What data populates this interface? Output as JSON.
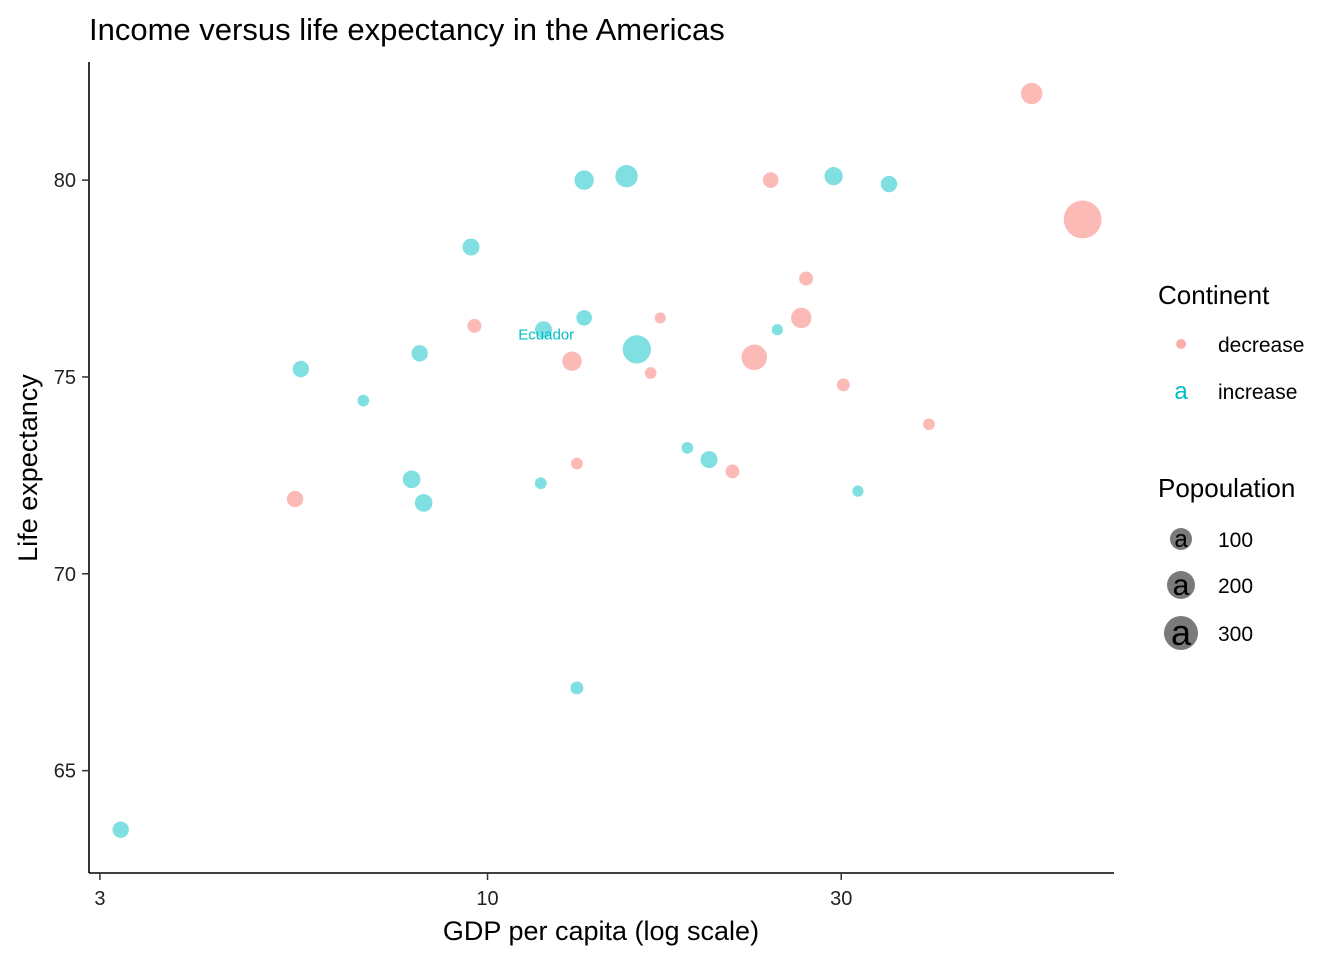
{
  "chart_data": {
    "type": "scatter",
    "title": "Income versus life expectancy in the Americas",
    "xlabel": "GDP per capita (log scale)",
    "ylabel": "Life expectancy",
    "x_scale": "log",
    "xlim": [
      2.9,
      70
    ],
    "ylim": [
      62.4,
      83.0
    ],
    "x_ticks": [
      3,
      10,
      30
    ],
    "x_tick_labels": [
      "3",
      "10",
      "30"
    ],
    "y_ticks": [
      65,
      70,
      75,
      80
    ],
    "y_tick_labels": [
      "65",
      "70",
      "75",
      "80"
    ],
    "grid": false,
    "colors": {
      "decrease": "#f8766d",
      "increase": "#00bfc4"
    },
    "legend": {
      "placement": "right",
      "color_title": "Continent",
      "color_entries": [
        {
          "label": "decrease",
          "key": "decrease"
        },
        {
          "label": "increase",
          "key": "increase"
        }
      ],
      "size_title": "Popoulation",
      "size_entries": [
        {
          "label": "100",
          "value": 100
        },
        {
          "label": "200",
          "value": 200
        },
        {
          "label": "300",
          "value": 300
        }
      ],
      "key_glyph": "a"
    },
    "annotations": [
      {
        "text": "Ecuador",
        "x": 12.0,
        "y": 76.1,
        "group": "increase"
      }
    ],
    "points": [
      {
        "x": 3.2,
        "y": 63.5,
        "size": 35,
        "group": "increase"
      },
      {
        "x": 5.6,
        "y": 75.2,
        "size": 35,
        "group": "increase"
      },
      {
        "x": 5.5,
        "y": 71.9,
        "size": 35,
        "group": "decrease"
      },
      {
        "x": 6.8,
        "y": 74.4,
        "size": 10,
        "group": "increase"
      },
      {
        "x": 8.1,
        "y": 75.6,
        "size": 35,
        "group": "increase"
      },
      {
        "x": 7.9,
        "y": 72.4,
        "size": 45,
        "group": "increase"
      },
      {
        "x": 8.2,
        "y": 71.8,
        "size": 45,
        "group": "increase"
      },
      {
        "x": 9.5,
        "y": 78.3,
        "size": 40,
        "group": "increase"
      },
      {
        "x": 9.6,
        "y": 76.3,
        "size": 20,
        "group": "decrease"
      },
      {
        "x": 11.8,
        "y": 72.3,
        "size": 10,
        "group": "increase"
      },
      {
        "x": 11.9,
        "y": 76.2,
        "size": 40,
        "group": "increase"
      },
      {
        "x": 13.0,
        "y": 75.4,
        "size": 60,
        "group": "decrease"
      },
      {
        "x": 13.2,
        "y": 72.8,
        "size": 10,
        "group": "decrease"
      },
      {
        "x": 13.2,
        "y": 67.1,
        "size": 15,
        "group": "increase"
      },
      {
        "x": 13.5,
        "y": 76.5,
        "size": 30,
        "group": "increase"
      },
      {
        "x": 13.5,
        "y": 80.0,
        "size": 60,
        "group": "increase"
      },
      {
        "x": 15.4,
        "y": 80.1,
        "size": 90,
        "group": "increase"
      },
      {
        "x": 15.9,
        "y": 75.7,
        "size": 170,
        "group": "increase"
      },
      {
        "x": 16.6,
        "y": 75.1,
        "size": 10,
        "group": "decrease"
      },
      {
        "x": 17.1,
        "y": 76.5,
        "size": 8,
        "group": "decrease"
      },
      {
        "x": 18.6,
        "y": 73.2,
        "size": 10,
        "group": "increase"
      },
      {
        "x": 19.9,
        "y": 72.9,
        "size": 40,
        "group": "increase"
      },
      {
        "x": 21.4,
        "y": 72.6,
        "size": 20,
        "group": "decrease"
      },
      {
        "x": 22.9,
        "y": 75.5,
        "size": 130,
        "group": "decrease"
      },
      {
        "x": 24.1,
        "y": 80.0,
        "size": 30,
        "group": "decrease"
      },
      {
        "x": 24.6,
        "y": 76.2,
        "size": 8,
        "group": "increase"
      },
      {
        "x": 26.5,
        "y": 76.5,
        "size": 70,
        "group": "decrease"
      },
      {
        "x": 26.9,
        "y": 77.5,
        "size": 20,
        "group": "decrease"
      },
      {
        "x": 29.3,
        "y": 80.1,
        "size": 50,
        "group": "increase"
      },
      {
        "x": 30.2,
        "y": 74.8,
        "size": 15,
        "group": "decrease"
      },
      {
        "x": 31.6,
        "y": 72.1,
        "size": 8,
        "group": "increase"
      },
      {
        "x": 34.8,
        "y": 79.9,
        "size": 35,
        "group": "increase"
      },
      {
        "x": 39.4,
        "y": 73.8,
        "size": 10,
        "group": "decrease"
      },
      {
        "x": 54.2,
        "y": 82.2,
        "size": 80,
        "group": "decrease"
      },
      {
        "x": 63.5,
        "y": 79.0,
        "size": 350,
        "group": "decrease"
      }
    ]
  }
}
